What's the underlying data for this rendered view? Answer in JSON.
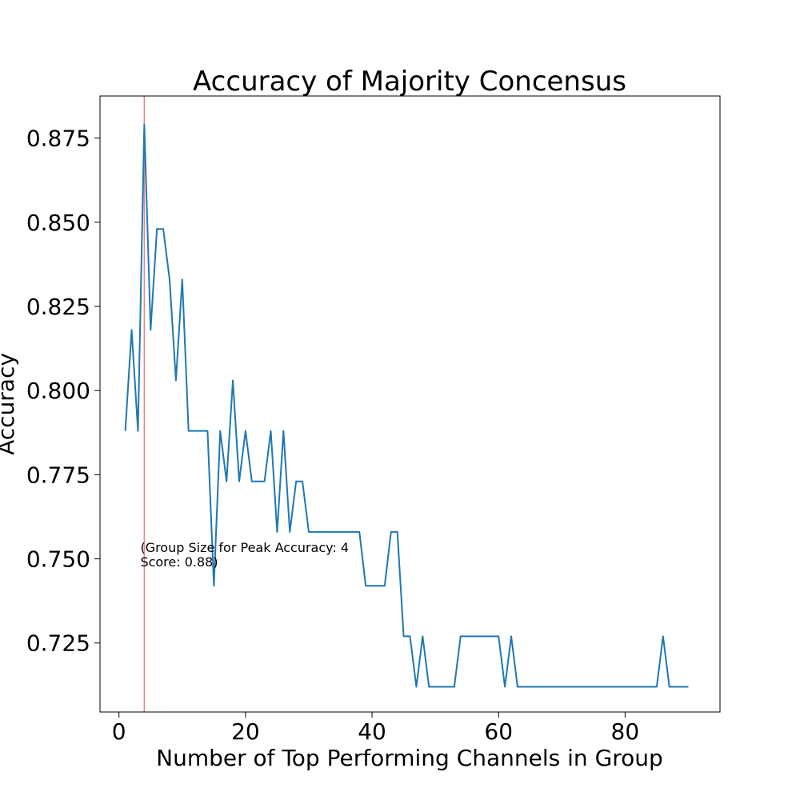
{
  "chart_data": {
    "type": "line",
    "title": "Accuracy of Majority Concensus",
    "xlabel": "Number of Top Performing Channels in Group",
    "ylabel": "Accuracy",
    "xlim": [
      -3,
      95
    ],
    "ylim": [
      0.7045,
      0.8875
    ],
    "x_ticks": [
      0,
      20,
      40,
      60,
      80
    ],
    "x_tick_labels": [
      "0",
      "20",
      "40",
      "60",
      "80"
    ],
    "y_ticks": [
      0.725,
      0.75,
      0.775,
      0.8,
      0.825,
      0.85,
      0.875
    ],
    "y_tick_labels": [
      "0.725",
      "0.750",
      "0.775",
      "0.800",
      "0.825",
      "0.850",
      "0.875"
    ],
    "grid": false,
    "series": [
      {
        "color": "#1f77b4",
        "x": [
          1,
          2,
          3,
          4,
          5,
          6,
          7,
          8,
          9,
          10,
          11,
          12,
          13,
          14,
          15,
          16,
          17,
          18,
          19,
          20,
          21,
          22,
          23,
          24,
          25,
          26,
          27,
          28,
          29,
          30,
          31,
          32,
          33,
          34,
          35,
          36,
          37,
          38,
          39,
          40,
          41,
          42,
          43,
          44,
          45,
          46,
          47,
          48,
          49,
          50,
          51,
          52,
          53,
          54,
          55,
          56,
          57,
          58,
          59,
          60,
          61,
          62,
          63,
          64,
          65,
          66,
          67,
          68,
          69,
          70,
          71,
          72,
          73,
          74,
          75,
          76,
          77,
          78,
          79,
          80,
          81,
          82,
          83,
          84,
          85,
          86,
          87,
          88,
          89,
          90
        ],
        "y": [
          0.788,
          0.818,
          0.788,
          0.879,
          0.818,
          0.848,
          0.848,
          0.833,
          0.803,
          0.833,
          0.788,
          0.788,
          0.788,
          0.788,
          0.742,
          0.788,
          0.773,
          0.803,
          0.773,
          0.788,
          0.773,
          0.773,
          0.773,
          0.788,
          0.758,
          0.788,
          0.758,
          0.773,
          0.773,
          0.758,
          0.758,
          0.758,
          0.758,
          0.758,
          0.758,
          0.758,
          0.758,
          0.758,
          0.742,
          0.742,
          0.742,
          0.742,
          0.758,
          0.758,
          0.727,
          0.727,
          0.712,
          0.727,
          0.712,
          0.712,
          0.712,
          0.712,
          0.712,
          0.727,
          0.727,
          0.727,
          0.727,
          0.727,
          0.727,
          0.727,
          0.712,
          0.727,
          0.712,
          0.712,
          0.712,
          0.712,
          0.712,
          0.712,
          0.712,
          0.712,
          0.712,
          0.712,
          0.712,
          0.712,
          0.712,
          0.712,
          0.712,
          0.712,
          0.712,
          0.712,
          0.712,
          0.712,
          0.712,
          0.712,
          0.712,
          0.727,
          0.712,
          0.712,
          0.712,
          0.712
        ]
      }
    ],
    "vline": {
      "x": 4,
      "color": "#f08080"
    },
    "annotation": {
      "line1": "(Group Size for Peak Accuracy: 4",
      "line2": "Score: 0.88)",
      "x": 3,
      "y": 0.752
    }
  }
}
